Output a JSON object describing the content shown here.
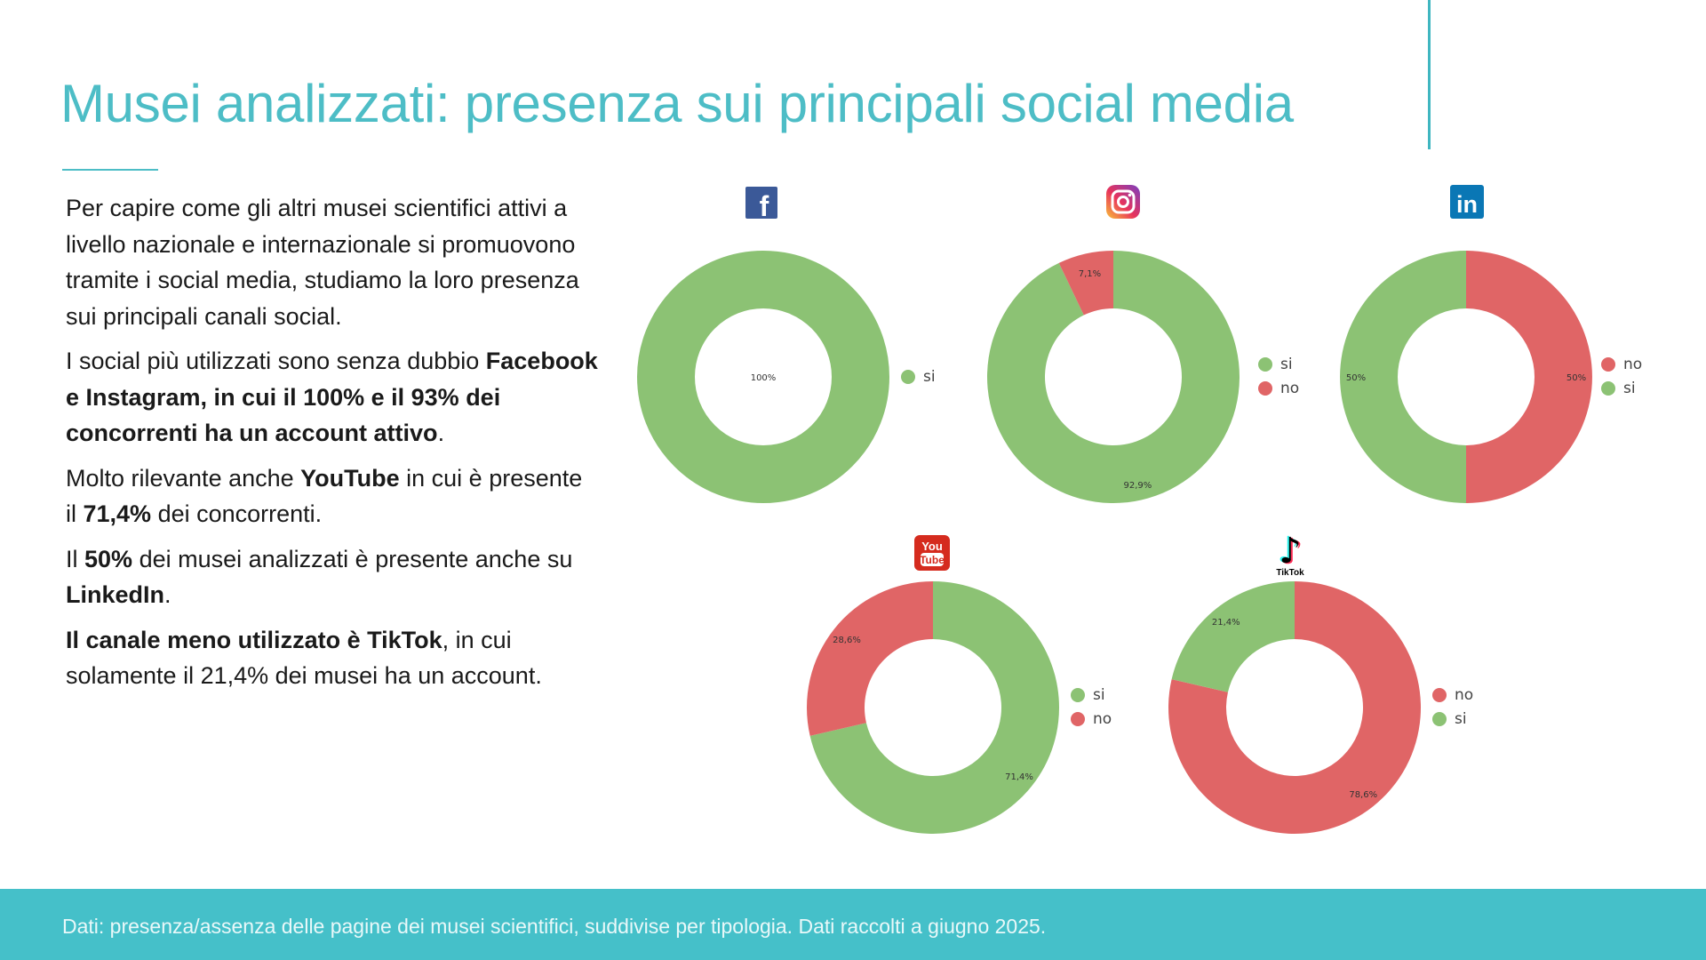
{
  "title": "Musei analizzati: presenza sui principali social media",
  "paragraphs": [
    [
      {
        "t": "Per capire come gli altri musei scientifici attivi a livello nazionale e internazionale si promuovono tramite i social media, studiamo la loro presenza sui principali canali social.",
        "b": false
      }
    ],
    [
      {
        "t": "I social più utilizzati sono senza dubbio ",
        "b": false
      },
      {
        "t": "Facebook e Instagram, in cui il 100% e il 93% dei concorrenti ha un account attivo",
        "b": true
      },
      {
        "t": ".",
        "b": false
      }
    ],
    [
      {
        "t": "Molto rilevante anche ",
        "b": false
      },
      {
        "t": "YouTube",
        "b": true
      },
      {
        "t": " in cui è presente il ",
        "b": false
      },
      {
        "t": "71,4%",
        "b": true
      },
      {
        "t": " dei concorrenti.",
        "b": false
      }
    ],
    [
      {
        "t": "Il ",
        "b": false
      },
      {
        "t": "50%",
        "b": true
      },
      {
        "t": " dei musei analizzati è presente anche su ",
        "b": false
      },
      {
        "t": "LinkedIn",
        "b": true
      },
      {
        "t": ".",
        "b": false
      }
    ],
    [
      {
        "t": "Il canale meno utilizzato è TikTok",
        "b": true
      },
      {
        "t": ", in cui solamente il 21,4% dei musei ha un account.",
        "b": false
      }
    ]
  ],
  "footer": "Dati: presenza/assenza delle pagine dei musei scientifici, suddivise per tipologia. Dati raccolti a giugno 2025.",
  "colors": {
    "si": "#8cc274",
    "no": "#e06566",
    "accent": "#4dbdc6"
  },
  "icons": {
    "facebook": {
      "name": "facebook-icon",
      "glyph": "f"
    },
    "instagram": {
      "name": "instagram-icon"
    },
    "linkedin": {
      "name": "linkedin-icon",
      "glyph": "in"
    },
    "youtube": {
      "name": "youtube-icon",
      "glyph_top": "You",
      "glyph_bottom": "Tube"
    },
    "tiktok": {
      "name": "tiktok-icon",
      "glyph": "♪",
      "label": "TikTok"
    }
  },
  "chart_data": [
    {
      "type": "pie",
      "id": "facebook",
      "title": "",
      "slices": [
        {
          "name": "si",
          "value": 100,
          "label": "100%"
        }
      ],
      "legend": [
        "si"
      ],
      "legend_position": "right"
    },
    {
      "type": "pie",
      "id": "instagram",
      "title": "",
      "slices": [
        {
          "name": "si",
          "value": 92.9,
          "label": "92,9%"
        },
        {
          "name": "no",
          "value": 7.1,
          "label": "7,1%"
        }
      ],
      "legend": [
        "si",
        "no"
      ],
      "legend_position": "right"
    },
    {
      "type": "pie",
      "id": "linkedin",
      "title": "",
      "slices": [
        {
          "name": "no",
          "value": 50,
          "label": "50%"
        },
        {
          "name": "si",
          "value": 50,
          "label": "50%"
        }
      ],
      "legend": [
        "no",
        "si"
      ],
      "legend_position": "right"
    },
    {
      "type": "pie",
      "id": "youtube",
      "title": "",
      "slices": [
        {
          "name": "si",
          "value": 71.4,
          "label": "71,4%"
        },
        {
          "name": "no",
          "value": 28.6,
          "label": "28,6%"
        }
      ],
      "legend": [
        "si",
        "no"
      ],
      "legend_position": "right"
    },
    {
      "type": "pie",
      "id": "tiktok",
      "title": "",
      "slices": [
        {
          "name": "no",
          "value": 78.6,
          "label": "78,6%"
        },
        {
          "name": "si",
          "value": 21.4,
          "label": "21,4%"
        }
      ],
      "legend": [
        "no",
        "si"
      ],
      "legend_position": "right"
    }
  ]
}
